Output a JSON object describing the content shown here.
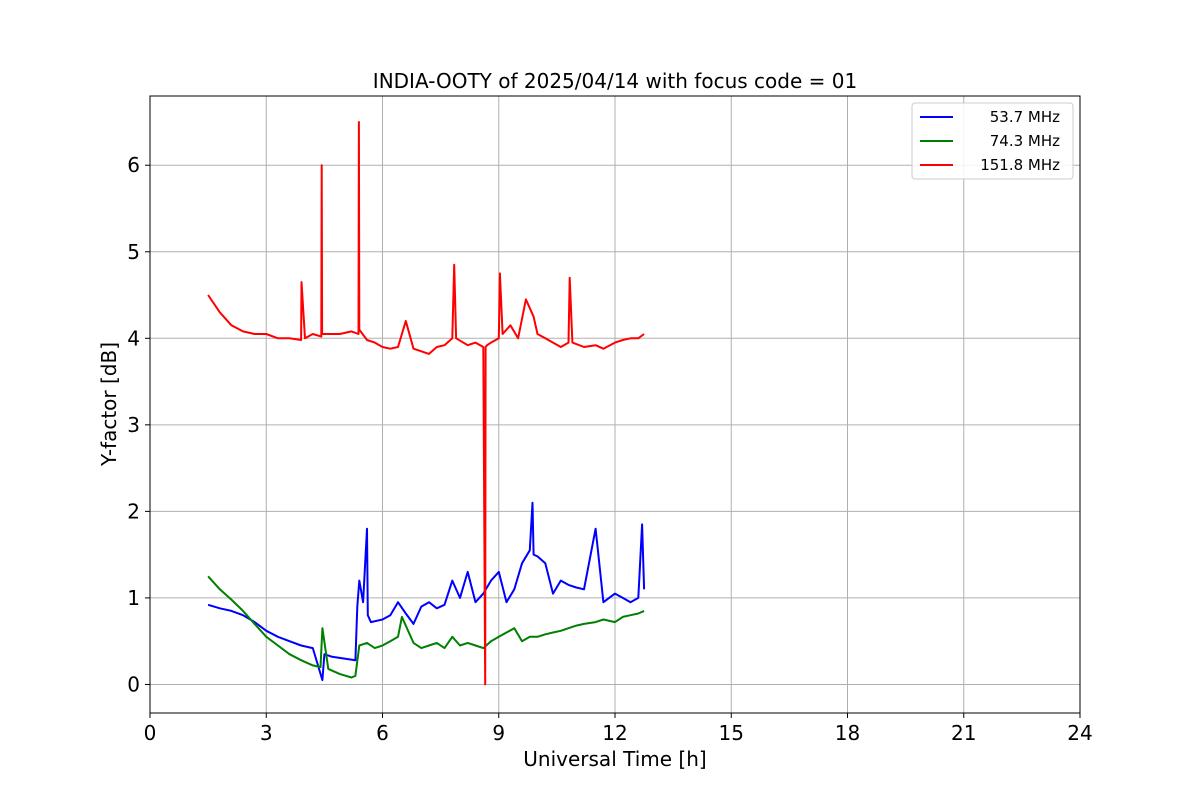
{
  "chart_data": {
    "type": "line",
    "title": "INDIA-OOTY of 2025/04/14 with focus code = 01",
    "xlabel": "Universal Time [h]",
    "ylabel": "Y-factor [dB]",
    "xlim": [
      0,
      24
    ],
    "ylim": [
      -0.33,
      6.8
    ],
    "xticks": [
      0,
      3,
      6,
      9,
      12,
      15,
      18,
      21,
      24
    ],
    "yticks": [
      0,
      1,
      2,
      3,
      4,
      5,
      6
    ],
    "grid": true,
    "legend_position": "top-right",
    "series": [
      {
        "name": "53.7 MHz",
        "color": "#0000ff",
        "x": [
          1.5,
          1.8,
          2.1,
          2.4,
          2.7,
          3.0,
          3.3,
          3.6,
          3.9,
          4.2,
          4.45,
          4.5,
          4.7,
          5.0,
          5.3,
          5.35,
          5.4,
          5.5,
          5.6,
          5.62,
          5.7,
          6.0,
          6.2,
          6.4,
          6.6,
          6.8,
          7.0,
          7.2,
          7.4,
          7.6,
          7.8,
          8.0,
          8.2,
          8.4,
          8.6,
          8.8,
          9.0,
          9.2,
          9.4,
          9.6,
          9.8,
          9.87,
          9.9,
          10.0,
          10.2,
          10.4,
          10.6,
          10.8,
          11.0,
          11.2,
          11.5,
          11.7,
          12.0,
          12.2,
          12.4,
          12.6,
          12.7,
          12.75
        ],
        "y": [
          0.92,
          0.88,
          0.85,
          0.8,
          0.72,
          0.62,
          0.55,
          0.5,
          0.45,
          0.42,
          0.05,
          0.35,
          0.32,
          0.3,
          0.28,
          0.9,
          1.2,
          0.95,
          1.8,
          0.8,
          0.72,
          0.75,
          0.8,
          0.95,
          0.82,
          0.7,
          0.9,
          0.95,
          0.88,
          0.92,
          1.2,
          1.0,
          1.3,
          0.95,
          1.05,
          1.2,
          1.3,
          0.95,
          1.1,
          1.4,
          1.55,
          2.1,
          1.5,
          1.48,
          1.4,
          1.05,
          1.2,
          1.15,
          1.12,
          1.1,
          1.8,
          0.95,
          1.05,
          1.0,
          0.95,
          1.0,
          1.85,
          1.1
        ]
      },
      {
        "name": "74.3 MHz",
        "color": "#008000",
        "x": [
          1.5,
          1.8,
          2.1,
          2.4,
          2.7,
          3.0,
          3.3,
          3.6,
          3.9,
          4.2,
          4.4,
          4.45,
          4.6,
          4.9,
          5.2,
          5.3,
          5.4,
          5.6,
          5.8,
          6.0,
          6.2,
          6.4,
          6.5,
          6.8,
          7.0,
          7.2,
          7.4,
          7.6,
          7.8,
          8.0,
          8.2,
          8.4,
          8.6,
          8.8,
          9.0,
          9.2,
          9.4,
          9.6,
          9.8,
          10.0,
          10.2,
          10.4,
          10.6,
          10.8,
          11.0,
          11.2,
          11.5,
          11.7,
          12.0,
          12.2,
          12.4,
          12.6,
          12.75
        ],
        "y": [
          1.25,
          1.1,
          0.98,
          0.85,
          0.7,
          0.55,
          0.45,
          0.35,
          0.28,
          0.22,
          0.2,
          0.65,
          0.18,
          0.12,
          0.08,
          0.1,
          0.45,
          0.48,
          0.42,
          0.45,
          0.5,
          0.55,
          0.78,
          0.48,
          0.42,
          0.45,
          0.48,
          0.42,
          0.55,
          0.45,
          0.48,
          0.45,
          0.42,
          0.5,
          0.55,
          0.6,
          0.65,
          0.5,
          0.55,
          0.55,
          0.58,
          0.6,
          0.62,
          0.65,
          0.68,
          0.7,
          0.72,
          0.75,
          0.72,
          0.78,
          0.8,
          0.82,
          0.85
        ]
      },
      {
        "name": "151.8 MHz",
        "color": "#ff0000",
        "x": [
          1.5,
          1.8,
          2.1,
          2.4,
          2.7,
          3.0,
          3.3,
          3.6,
          3.9,
          3.91,
          4.0,
          4.2,
          4.42,
          4.43,
          4.44,
          4.6,
          4.9,
          5.2,
          5.38,
          5.39,
          5.4,
          5.6,
          5.8,
          6.0,
          6.2,
          6.4,
          6.6,
          6.8,
          7.0,
          7.2,
          7.4,
          7.6,
          7.8,
          7.85,
          7.9,
          8.2,
          8.4,
          8.6,
          8.65,
          8.66,
          8.7,
          8.8,
          9.0,
          9.03,
          9.1,
          9.3,
          9.5,
          9.7,
          9.9,
          10.0,
          10.2,
          10.4,
          10.6,
          10.8,
          10.83,
          10.9,
          11.2,
          11.5,
          11.7,
          12.0,
          12.2,
          12.4,
          12.6,
          12.75
        ],
        "y": [
          4.5,
          4.3,
          4.15,
          4.08,
          4.05,
          4.05,
          4.0,
          4.0,
          3.98,
          4.65,
          4.0,
          4.05,
          4.02,
          6.0,
          4.05,
          4.05,
          4.05,
          4.08,
          4.05,
          6.5,
          4.1,
          3.98,
          3.95,
          3.9,
          3.88,
          3.9,
          4.2,
          3.88,
          3.85,
          3.82,
          3.9,
          3.92,
          4.0,
          4.85,
          4.0,
          3.92,
          3.95,
          3.9,
          0.0,
          3.9,
          3.92,
          3.95,
          4.0,
          4.75,
          4.05,
          4.15,
          4.0,
          4.45,
          4.25,
          4.05,
          4.0,
          3.95,
          3.9,
          3.95,
          4.7,
          3.95,
          3.9,
          3.92,
          3.88,
          3.95,
          3.98,
          4.0,
          4.0,
          4.05
        ]
      }
    ]
  }
}
